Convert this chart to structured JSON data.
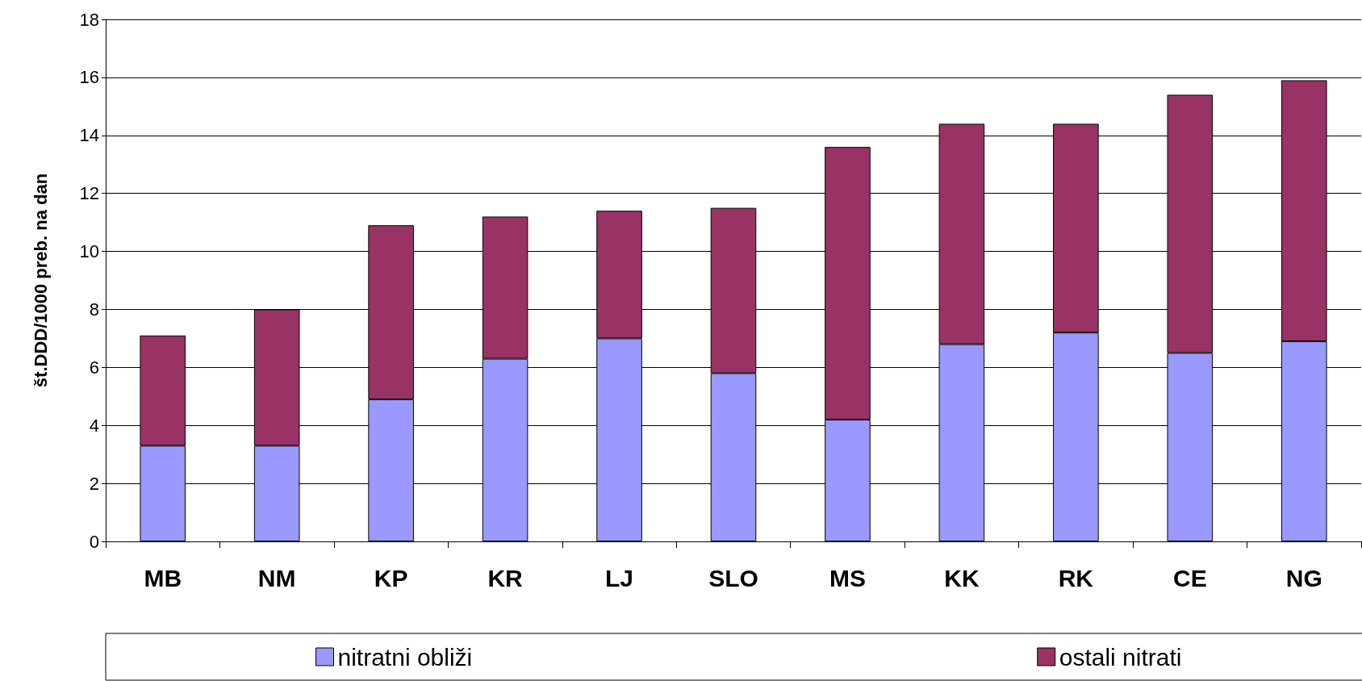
{
  "chart_data": {
    "type": "bar",
    "stacked": true,
    "ylabel": "št.DDD/1000 preb. na dan",
    "categories": [
      "MB",
      "NM",
      "KP",
      "KR",
      "LJ",
      "SLO",
      "MS",
      "KK",
      "RK",
      "CE",
      "NG"
    ],
    "series": [
      {
        "name": "nitratni obliži",
        "color": "#9999ff",
        "values": [
          3.3,
          3.3,
          4.9,
          6.3,
          7.0,
          5.8,
          4.2,
          6.8,
          7.2,
          6.5,
          6.9
        ]
      },
      {
        "name": "ostali nitrati",
        "color": "#993366",
        "values": [
          3.8,
          4.7,
          6.0,
          4.9,
          4.4,
          5.7,
          9.4,
          7.6,
          7.2,
          8.9,
          9.0
        ]
      }
    ],
    "ylim": [
      0,
      18
    ],
    "yticks": [
      0,
      2,
      4,
      6,
      8,
      10,
      12,
      14,
      16,
      18
    ],
    "grid": "y",
    "legend": "bottom"
  }
}
